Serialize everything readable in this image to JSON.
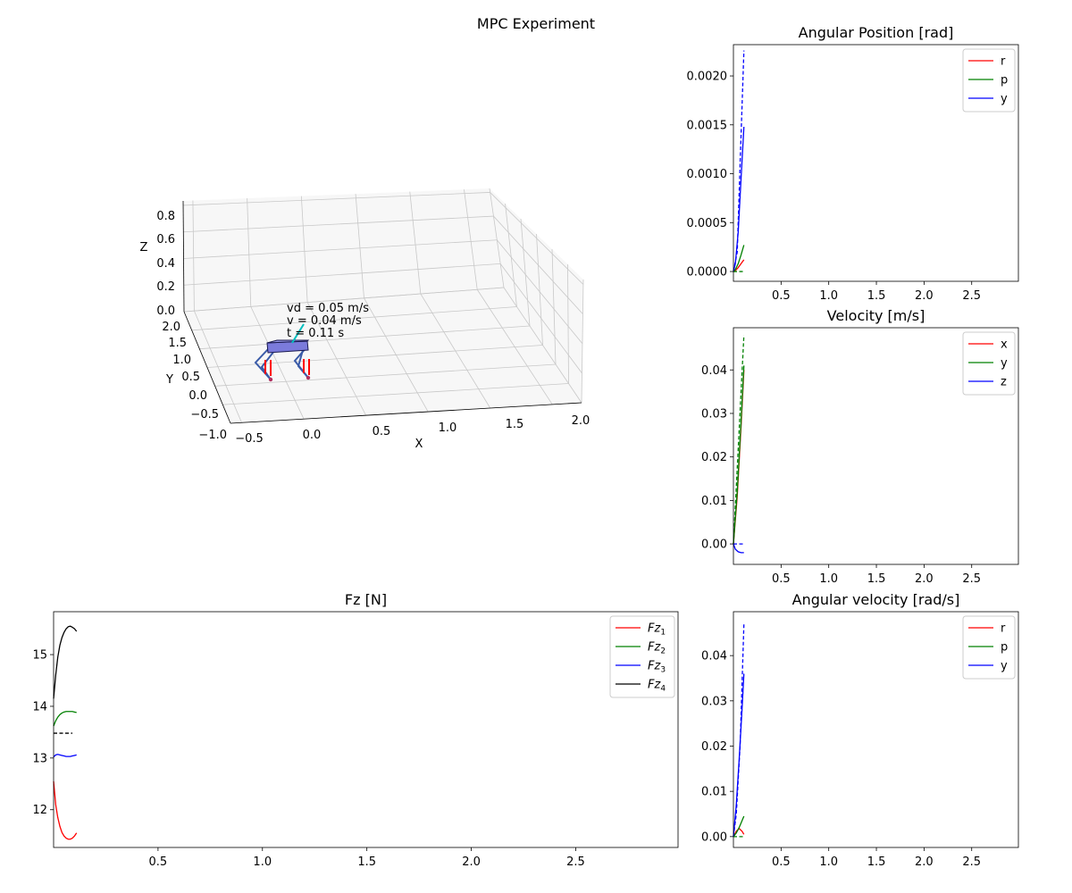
{
  "figure": {
    "title": "MPC Experiment"
  },
  "chart_data": [
    {
      "id": "angpos",
      "type": "line",
      "title": "Angular Position [rad]",
      "xlim": [
        0.0,
        2.99
      ],
      "ylim": [
        -0.0001,
        0.00232
      ],
      "x_ticks": [
        "0.5",
        "1.0",
        "1.5",
        "2.0",
        "2.5"
      ],
      "x_tick_values": [
        0.5,
        1.0,
        1.5,
        2.0,
        2.5
      ],
      "y_ticks": [
        "0.0000",
        "0.0005",
        "0.0010",
        "0.0015",
        "0.0020"
      ],
      "y_tick_values": [
        0.0,
        0.0005,
        0.001,
        0.0015,
        0.002
      ],
      "legend_position": "top-right",
      "series": [
        {
          "name": "r",
          "color": "#ff0000",
          "style": "solid",
          "x": [
            0,
            0.02,
            0.05,
            0.08,
            0.11
          ],
          "y": [
            0,
            1e-05,
            4e-05,
            8e-05,
            0.00012
          ]
        },
        {
          "name": "p",
          "color": "#008000",
          "style": "solid",
          "x": [
            0,
            0.02,
            0.05,
            0.08,
            0.11
          ],
          "y": [
            0,
            2e-05,
            8e-05,
            0.00017,
            0.00027
          ]
        },
        {
          "name": "y",
          "color": "#0000ff",
          "style": "solid",
          "x": [
            0,
            0.02,
            0.05,
            0.08,
            0.11
          ],
          "y": [
            0,
            8e-05,
            0.0004,
            0.00095,
            0.00148
          ]
        },
        {
          "name": "",
          "color": "#0000ff",
          "style": "dashed",
          "x": [
            0,
            0.04,
            0.07,
            0.11
          ],
          "y": [
            0,
            0.0002,
            0.0011,
            0.00226
          ]
        },
        {
          "name": "",
          "color": "#008000",
          "style": "dashed",
          "x": [
            0,
            0.11
          ],
          "y": [
            0,
            0
          ]
        }
      ]
    },
    {
      "id": "vel",
      "type": "line",
      "title": "Velocity [m/s]",
      "xlim": [
        0.0,
        2.99
      ],
      "ylim": [
        -0.0047,
        0.0497
      ],
      "x_ticks": [
        "0.5",
        "1.0",
        "1.5",
        "2.0",
        "2.5"
      ],
      "x_tick_values": [
        0.5,
        1.0,
        1.5,
        2.0,
        2.5
      ],
      "y_ticks": [
        "0.00",
        "0.01",
        "0.02",
        "0.03",
        "0.04"
      ],
      "y_tick_values": [
        0.0,
        0.01,
        0.02,
        0.03,
        0.04
      ],
      "legend_position": "top-right",
      "series": [
        {
          "name": "x",
          "color": "#ff0000",
          "style": "solid",
          "x": [
            0,
            0.04,
            0.08,
            0.11
          ],
          "y": [
            0,
            0.011,
            0.027,
            0.04
          ]
        },
        {
          "name": "y",
          "color": "#008000",
          "style": "solid",
          "x": [
            0,
            0.04,
            0.08,
            0.11
          ],
          "y": [
            0,
            0.012,
            0.028,
            0.041
          ]
        },
        {
          "name": "z",
          "color": "#0000ff",
          "style": "solid",
          "x": [
            0,
            0.02,
            0.05,
            0.08,
            0.11
          ],
          "y": [
            0,
            -0.0012,
            -0.0018,
            -0.002,
            -0.002
          ]
        },
        {
          "name": "",
          "color": "#008000",
          "style": "dashed",
          "x": [
            0,
            0.11
          ],
          "y": [
            0,
            0.048
          ]
        },
        {
          "name": "",
          "color": "#0000ff",
          "style": "dashed",
          "x": [
            0,
            0.11
          ],
          "y": [
            0,
            0
          ]
        }
      ]
    },
    {
      "id": "fz",
      "type": "line",
      "title": "Fz [N]",
      "xlim": [
        0.0,
        2.99
      ],
      "ylim": [
        11.27,
        15.83
      ],
      "x_ticks": [
        "0.5",
        "1.0",
        "1.5",
        "2.0",
        "2.5"
      ],
      "x_tick_values": [
        0.5,
        1.0,
        1.5,
        2.0,
        2.5
      ],
      "y_ticks": [
        "12",
        "13",
        "14",
        "15"
      ],
      "y_tick_values": [
        12,
        13,
        14,
        15
      ],
      "legend_position": "top-right",
      "series": [
        {
          "name": "Fz",
          "sub": "1",
          "color": "#ff0000",
          "style": "solid",
          "x": [
            0,
            0.01,
            0.02,
            0.03,
            0.04,
            0.05,
            0.06,
            0.07,
            0.08,
            0.09,
            0.1,
            0.11
          ],
          "y": [
            12.55,
            12.1,
            11.85,
            11.68,
            11.56,
            11.49,
            11.45,
            11.43,
            11.43,
            11.45,
            11.49,
            11.55
          ]
        },
        {
          "name": "Fz",
          "sub": "2",
          "color": "#008000",
          "style": "solid",
          "x": [
            0,
            0.01,
            0.02,
            0.03,
            0.04,
            0.05,
            0.06,
            0.07,
            0.08,
            0.09,
            0.1,
            0.11
          ],
          "y": [
            13.62,
            13.72,
            13.79,
            13.84,
            13.87,
            13.89,
            13.9,
            13.9,
            13.9,
            13.9,
            13.89,
            13.88
          ]
        },
        {
          "name": "Fz",
          "sub": "3",
          "color": "#0000ff",
          "style": "solid",
          "x": [
            0,
            0.01,
            0.02,
            0.03,
            0.04,
            0.05,
            0.06,
            0.07,
            0.08,
            0.09,
            0.1,
            0.11
          ],
          "y": [
            13.02,
            13.06,
            13.07,
            13.06,
            13.05,
            13.04,
            13.03,
            13.03,
            13.03,
            13.04,
            13.05,
            13.06
          ]
        },
        {
          "name": "Fz",
          "sub": "4",
          "color": "#000000",
          "style": "solid",
          "x": [
            0,
            0.01,
            0.02,
            0.03,
            0.04,
            0.05,
            0.06,
            0.07,
            0.08,
            0.09,
            0.1,
            0.11
          ],
          "y": [
            14.15,
            14.6,
            14.95,
            15.18,
            15.33,
            15.43,
            15.5,
            15.54,
            15.55,
            15.53,
            15.5,
            15.45
          ]
        },
        {
          "name": "",
          "color": "#000000",
          "style": "dashed",
          "x": [
            0,
            0.09
          ],
          "y": [
            13.48,
            13.48
          ]
        }
      ]
    },
    {
      "id": "angvel",
      "type": "line",
      "title": "Angular velocity [rad/s]",
      "xlim": [
        0.0,
        2.99
      ],
      "ylim": [
        -0.0024,
        0.0497
      ],
      "x_ticks": [
        "0.5",
        "1.0",
        "1.5",
        "2.0",
        "2.5"
      ],
      "x_tick_values": [
        0.5,
        1.0,
        1.5,
        2.0,
        2.5
      ],
      "y_ticks": [
        "0.00",
        "0.01",
        "0.02",
        "0.03",
        "0.04"
      ],
      "y_tick_values": [
        0.0,
        0.01,
        0.02,
        0.03,
        0.04
      ],
      "legend_position": "top-right",
      "series": [
        {
          "name": "r",
          "color": "#ff0000",
          "style": "solid",
          "x": [
            0,
            0.03,
            0.06,
            0.09,
            0.11
          ],
          "y": [
            0,
            0.0012,
            0.0018,
            0.0012,
            0.0005
          ]
        },
        {
          "name": "p",
          "color": "#008000",
          "style": "solid",
          "x": [
            0,
            0.03,
            0.06,
            0.09,
            0.11
          ],
          "y": [
            0,
            0.0008,
            0.002,
            0.0035,
            0.0045
          ]
        },
        {
          "name": "y",
          "color": "#0000ff",
          "style": "solid",
          "x": [
            0,
            0.03,
            0.06,
            0.09,
            0.11
          ],
          "y": [
            0,
            0.007,
            0.017,
            0.028,
            0.036
          ]
        },
        {
          "name": "",
          "color": "#0000ff",
          "style": "dashed",
          "x": [
            0,
            0.03,
            0.07,
            0.11
          ],
          "y": [
            0,
            0.005,
            0.02,
            0.047
          ]
        },
        {
          "name": "",
          "color": "#008000",
          "style": "dashed",
          "x": [
            0,
            0.11
          ],
          "y": [
            0,
            0
          ]
        }
      ]
    }
  ],
  "scene3d": {
    "x_label": "X",
    "y_label": "Y",
    "z_label": "Z",
    "x_ticks": [
      "−0.5",
      "0.0",
      "0.5",
      "1.0",
      "1.5",
      "2.0"
    ],
    "y_ticks": [
      "2.0",
      "1.5",
      "1.0",
      "0.5",
      "0.0",
      "−0.5",
      "−1.0"
    ],
    "z_ticks": [
      "0.8",
      "0.6",
      "0.4",
      "0.2",
      "0.0"
    ],
    "annotations": [
      "vd = 0.05 m/s",
      "v = 0.04 m/s",
      "t = 0.11 s"
    ],
    "body_color": "#7b7bdc",
    "leg_color": "#3a5ba8",
    "force_color": "#ff0000",
    "velocity_arrow_color": "#00bfbf"
  }
}
